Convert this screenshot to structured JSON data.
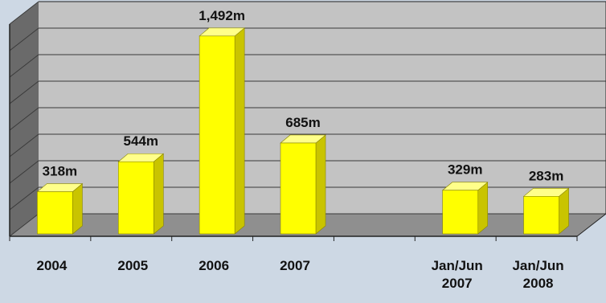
{
  "chart_data": {
    "type": "bar",
    "categories": [
      [
        "2004"
      ],
      [
        "2005"
      ],
      [
        "2006"
      ],
      [
        "2007"
      ],
      [
        ""
      ],
      [
        "Jan/Jun",
        "2007"
      ],
      [
        "Jan/Jun",
        "2008"
      ]
    ],
    "values": [
      318,
      544,
      1492,
      685,
      null,
      329,
      283
    ],
    "data_labels": [
      "318m",
      "544m",
      "1,492m",
      "685m",
      "",
      "329m",
      "283m"
    ],
    "title": "",
    "xlabel": "",
    "ylabel": "",
    "ylim": [
      0,
      1600
    ],
    "grid": true,
    "legend": "none",
    "three_d": true,
    "colors": {
      "bar_front": "#ffff00",
      "bar_side": "#c9c400",
      "bar_top": "#ffff8a",
      "wall_back": "#c3c3c3",
      "wall_left": "#6a6a6a",
      "floor": "#8f8f8f",
      "gridline": "#3a3a3a",
      "page_background": "#cdd8e4"
    }
  }
}
